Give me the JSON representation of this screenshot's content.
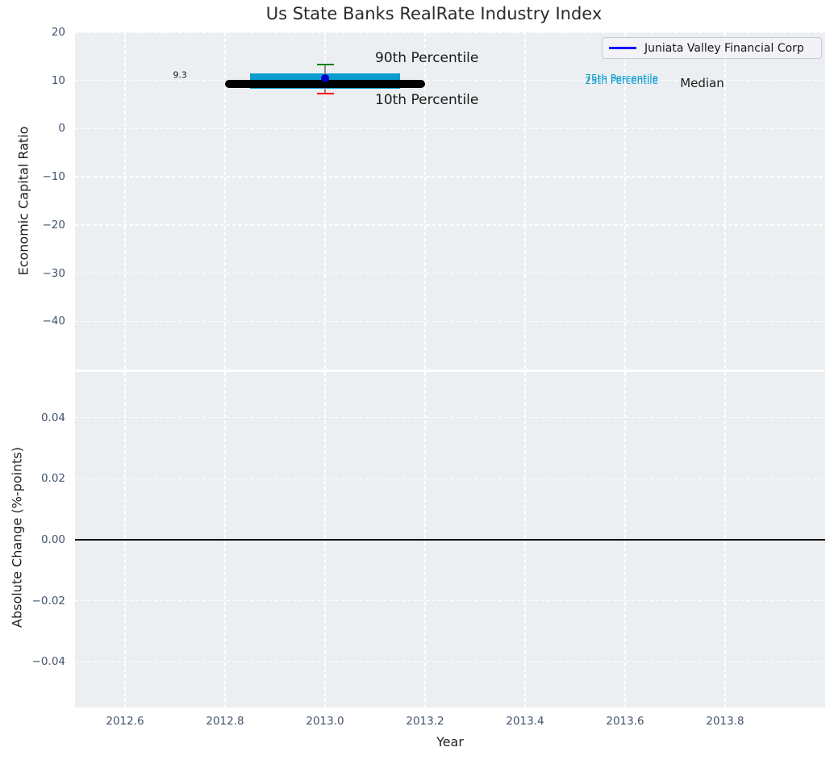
{
  "figure": {
    "title": "Us State Banks RealRate Industry Index",
    "background": "#ffffff",
    "axes_background": "#eceff1",
    "grid_color": "#ffffff",
    "tick_color": "#42526b",
    "text_color": "#1f1f1f"
  },
  "chart_data": [
    {
      "type": "boxplot",
      "panel": "top",
      "title": "Us State Banks RealRate Industry Index",
      "ylabel": "Economic Capital Ratio",
      "xlim": [
        2012.5,
        2014.0
      ],
      "ylim": [
        -50,
        20
      ],
      "grid": true,
      "show_x_tick_labels": false,
      "xticks": [
        {
          "v": 2012.6,
          "label": "2012.6"
        },
        {
          "v": 2012.8,
          "label": "2012.8"
        },
        {
          "v": 2013.0,
          "label": "2013.0"
        },
        {
          "v": 2013.2,
          "label": "2013.2"
        },
        {
          "v": 2013.4,
          "label": "2013.4"
        },
        {
          "v": 2013.6,
          "label": "2013.6"
        },
        {
          "v": 2013.8,
          "label": "2013.8"
        }
      ],
      "yticks": [
        {
          "v": 20,
          "label": "20"
        },
        {
          "v": 10,
          "label": "10"
        },
        {
          "v": 0,
          "label": "0"
        },
        {
          "v": -10,
          "label": "−10"
        },
        {
          "v": -20,
          "label": "−20"
        },
        {
          "v": -30,
          "label": "−30"
        },
        {
          "v": -40,
          "label": "−40"
        }
      ],
      "legend": {
        "position": "upper right",
        "entries": [
          {
            "label": "Juniata Valley Financial Corp",
            "color": "#0000ff"
          }
        ]
      },
      "industry_summary": {
        "x": 2013.0,
        "p10": 7.3,
        "p25": 8.2,
        "median": 9.3,
        "p75": 11.4,
        "p90": 13.3,
        "median_line_span": [
          2012.8,
          2013.2
        ],
        "box_span": [
          2012.85,
          2013.15
        ],
        "box_color": "#0a9bd0",
        "median_color": "#000000",
        "p90_cap_color": "#008000",
        "p10_cap_color": "#ff0000",
        "whisker_color": "#8c8c8c"
      },
      "series": [
        {
          "name": "Juniata Valley Financial Corp",
          "marker": "circle",
          "color": "#0000cd",
          "x": [
            2013.0
          ],
          "y": [
            10.4
          ]
        }
      ],
      "annotations": [
        {
          "id": "median-value",
          "text": "9.3",
          "x": 2012.71,
          "y": 11.1,
          "color": "#1a1a1a",
          "size": 11,
          "anchor": "middle"
        },
        {
          "id": "p90",
          "text": "90th Percentile",
          "x": 2013.1,
          "y": 14.6,
          "color": "#1a1a1a",
          "size": 17,
          "anchor": "start"
        },
        {
          "id": "p10",
          "text": "10th Percentile",
          "x": 2013.1,
          "y": 5.9,
          "color": "#1a1a1a",
          "size": 17,
          "anchor": "start"
        },
        {
          "id": "p75",
          "text": "75th Percentile",
          "x": 2013.52,
          "y": 10.5,
          "color": "#0a9bd0",
          "size": 12,
          "anchor": "start"
        },
        {
          "id": "p25",
          "text": "25th Percentile",
          "x": 2013.52,
          "y": 9.9,
          "color": "#0a9bd0",
          "size": 12,
          "anchor": "start"
        },
        {
          "id": "median",
          "text": "Median",
          "x": 2013.71,
          "y": 9.4,
          "color": "#1a1a1a",
          "size": 15,
          "anchor": "start"
        }
      ]
    },
    {
      "type": "line",
      "panel": "bottom",
      "xlabel": "Year",
      "ylabel": "Absolute Change (%-points)",
      "xlim": [
        2012.5,
        2014.0
      ],
      "ylim": [
        -0.055,
        0.055
      ],
      "grid": true,
      "show_x_tick_labels": true,
      "xticks": [
        {
          "v": 2012.6,
          "label": "2012.6"
        },
        {
          "v": 2012.8,
          "label": "2012.8"
        },
        {
          "v": 2013.0,
          "label": "2013.0"
        },
        {
          "v": 2013.2,
          "label": "2013.2"
        },
        {
          "v": 2013.4,
          "label": "2013.4"
        },
        {
          "v": 2013.6,
          "label": "2013.6"
        },
        {
          "v": 2013.8,
          "label": "2013.8"
        }
      ],
      "yticks": [
        {
          "v": 0.04,
          "label": "0.04"
        },
        {
          "v": 0.02,
          "label": "0.02"
        },
        {
          "v": 0,
          "label": "0.00"
        },
        {
          "v": -0.02,
          "label": "−0.02"
        },
        {
          "v": -0.04,
          "label": "−0.04"
        }
      ],
      "zero_line": {
        "y": 0,
        "color": "#000000",
        "width": 2
      },
      "series": []
    }
  ]
}
